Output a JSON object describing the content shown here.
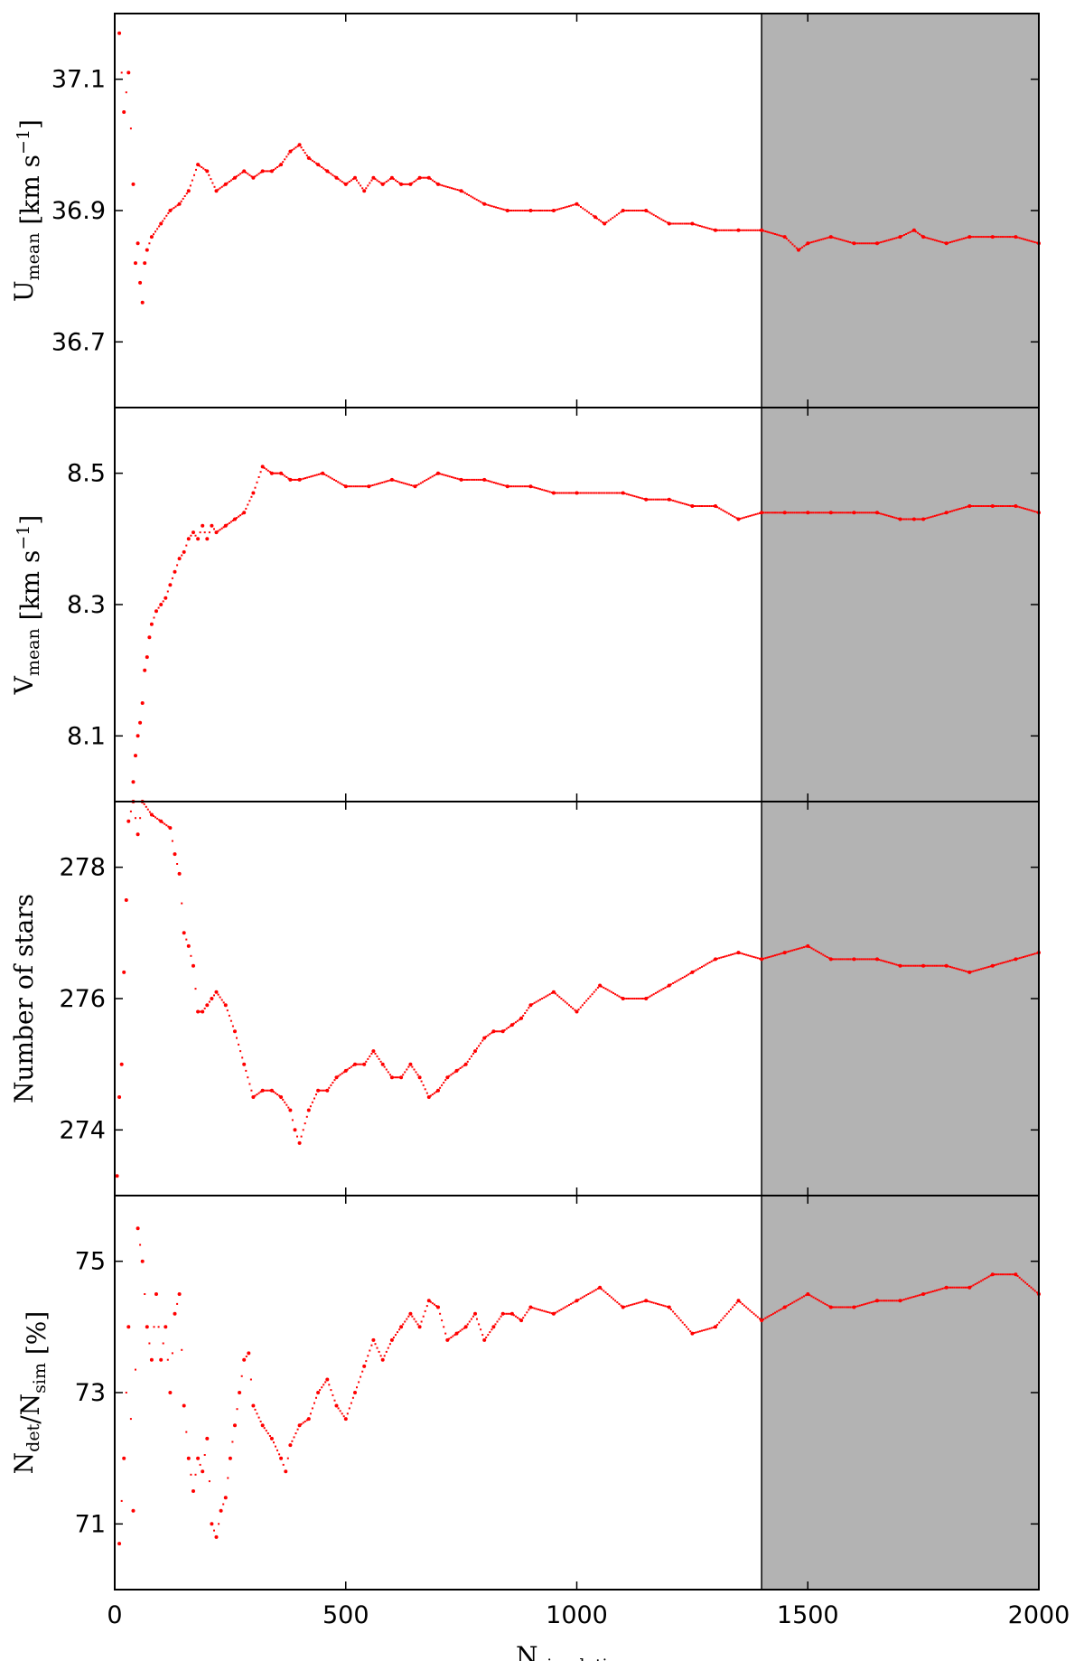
{
  "chart_data": {
    "type": "scatter",
    "shared_x": {
      "label_main": "N",
      "label_sub": "simulations",
      "xlim": [
        0,
        2000
      ],
      "ticks": [
        0,
        500,
        1000,
        1500,
        2000
      ],
      "tick_labels": [
        "0",
        "500",
        "1000",
        "1500",
        "2000"
      ]
    },
    "shaded_region": {
      "x_start": 1400,
      "x_end": 2000,
      "color": "#b3b3b3",
      "boundary_line_x": 1400
    },
    "marker_color": "#ff0000",
    "grid": false,
    "panels": [
      {
        "id": "u",
        "ylabel_main": "U",
        "ylabel_sub": "mean",
        "ylabel_unit": " [km s",
        "ylabel_unit_sup": "−1",
        "ylabel_unit_end": "]",
        "ylim": [
          36.6,
          37.2
        ],
        "yticks": [
          36.7,
          36.9,
          37.1
        ],
        "ytick_labels": [
          "36.7",
          "36.9",
          "37.1"
        ],
        "series": [
          {
            "x": [
              10,
              20,
              30,
              40,
              45,
              50,
              55,
              60,
              65,
              70,
              80,
              100,
              120,
              140,
              160,
              180,
              200,
              220,
              240,
              260,
              280,
              300,
              320,
              340,
              360,
              380,
              400,
              420,
              440,
              460,
              480,
              500,
              520,
              540,
              560,
              580,
              600,
              620,
              640,
              660,
              680,
              700,
              750,
              800,
              850,
              900,
              950,
              1000,
              1040,
              1060,
              1100,
              1150,
              1200,
              1250,
              1300,
              1350,
              1400,
              1450,
              1480,
              1500,
              1550,
              1600,
              1650,
              1700,
              1730,
              1750,
              1800,
              1850,
              1900,
              1950,
              2000
            ],
            "y": [
              37.17,
              37.05,
              37.11,
              36.94,
              36.82,
              36.85,
              36.79,
              36.76,
              36.82,
              36.84,
              36.86,
              36.88,
              36.9,
              36.91,
              36.93,
              36.97,
              36.96,
              36.93,
              36.94,
              36.95,
              36.96,
              36.95,
              36.96,
              36.96,
              36.97,
              36.99,
              37.0,
              36.98,
              36.97,
              36.96,
              36.95,
              36.94,
              36.95,
              36.93,
              36.95,
              36.94,
              36.95,
              36.94,
              36.94,
              36.95,
              36.95,
              36.94,
              36.93,
              36.91,
              36.9,
              36.9,
              36.9,
              36.91,
              36.89,
              36.88,
              36.9,
              36.9,
              36.88,
              36.88,
              36.87,
              36.87,
              36.87,
              36.86,
              36.84,
              36.85,
              36.86,
              36.85,
              36.85,
              36.86,
              36.87,
              36.86,
              36.85,
              36.86,
              36.86,
              36.86,
              36.85
            ]
          }
        ]
      },
      {
        "id": "v",
        "ylabel_main": "V",
        "ylabel_sub": "mean",
        "ylabel_unit": " [km s",
        "ylabel_unit_sup": "−1",
        "ylabel_unit_end": "]",
        "ylim": [
          8.0,
          8.6
        ],
        "yticks": [
          8.1,
          8.3,
          8.5
        ],
        "ytick_labels": [
          "8.1",
          "8.3",
          "8.5"
        ],
        "series": [
          {
            "x": [
              40,
              45,
              50,
              55,
              60,
              65,
              70,
              75,
              80,
              90,
              100,
              110,
              120,
              130,
              140,
              150,
              160,
              170,
              180,
              190,
              200,
              210,
              220,
              240,
              260,
              280,
              300,
              320,
              340,
              360,
              380,
              400,
              450,
              500,
              550,
              600,
              650,
              700,
              750,
              800,
              850,
              900,
              950,
              1000,
              1100,
              1150,
              1200,
              1250,
              1300,
              1350,
              1400,
              1450,
              1500,
              1550,
              1600,
              1650,
              1700,
              1730,
              1750,
              1800,
              1850,
              1900,
              1950,
              2000
            ],
            "y": [
              8.03,
              8.07,
              8.1,
              8.12,
              8.15,
              8.2,
              8.22,
              8.25,
              8.27,
              8.29,
              8.3,
              8.31,
              8.33,
              8.35,
              8.37,
              8.38,
              8.4,
              8.41,
              8.4,
              8.42,
              8.4,
              8.42,
              8.41,
              8.42,
              8.43,
              8.44,
              8.47,
              8.51,
              8.5,
              8.5,
              8.49,
              8.49,
              8.5,
              8.48,
              8.48,
              8.49,
              8.48,
              8.5,
              8.49,
              8.49,
              8.48,
              8.48,
              8.47,
              8.47,
              8.47,
              8.46,
              8.46,
              8.45,
              8.45,
              8.43,
              8.44,
              8.44,
              8.44,
              8.44,
              8.44,
              8.44,
              8.43,
              8.43,
              8.43,
              8.44,
              8.45,
              8.45,
              8.45,
              8.44
            ]
          }
        ]
      },
      {
        "id": "n",
        "ylabel_main": "Number of stars",
        "ylabel_sub": "",
        "ylabel_unit": "",
        "ylabel_unit_sup": "",
        "ylabel_unit_end": "",
        "ylim": [
          273.0,
          279.0
        ],
        "yticks": [
          274,
          276,
          278
        ],
        "ytick_labels": [
          "274",
          "276",
          "278"
        ],
        "series": [
          {
            "x": [
              5,
              10,
              15,
              20,
              25,
              30,
              40,
              50,
              60,
              80,
              100,
              120,
              130,
              140,
              150,
              160,
              170,
              180,
              190,
              200,
              210,
              220,
              240,
              260,
              280,
              300,
              320,
              340,
              360,
              380,
              390,
              400,
              420,
              440,
              460,
              480,
              500,
              520,
              540,
              560,
              580,
              600,
              620,
              640,
              660,
              680,
              700,
              720,
              740,
              760,
              780,
              800,
              820,
              840,
              860,
              880,
              900,
              950,
              1000,
              1050,
              1100,
              1150,
              1200,
              1250,
              1300,
              1350,
              1400,
              1450,
              1500,
              1550,
              1600,
              1650,
              1700,
              1750,
              1800,
              1850,
              1900,
              1950,
              2000
            ],
            "y": [
              273.3,
              274.5,
              275.0,
              276.4,
              277.5,
              278.7,
              279.0,
              278.5,
              279.0,
              278.8,
              278.7,
              278.6,
              278.2,
              277.9,
              277.0,
              276.8,
              276.5,
              275.8,
              275.8,
              275.9,
              276.0,
              276.1,
              275.9,
              275.5,
              275.0,
              274.5,
              274.6,
              274.6,
              274.5,
              274.3,
              274.0,
              273.8,
              274.3,
              274.6,
              274.6,
              274.8,
              274.9,
              275.0,
              275.0,
              275.2,
              275.0,
              274.8,
              274.8,
              275.0,
              274.8,
              274.5,
              274.6,
              274.8,
              274.9,
              275.0,
              275.2,
              275.4,
              275.5,
              275.5,
              275.6,
              275.7,
              275.9,
              276.1,
              275.8,
              276.2,
              276.0,
              276.0,
              276.2,
              276.4,
              276.6,
              276.7,
              276.6,
              276.7,
              276.8,
              276.6,
              276.6,
              276.6,
              276.5,
              276.5,
              276.5,
              276.4,
              276.5,
              276.6,
              276.7
            ]
          }
        ]
      },
      {
        "id": "det",
        "ylabel_main": "N",
        "ylabel_sub": "det",
        "ylabel_mid": "/N",
        "ylabel_sub2": "sim",
        "ylabel_unit": " [%]",
        "ylabel_unit_sup": "",
        "ylabel_unit_end": "",
        "ylim": [
          70.0,
          76.0
        ],
        "yticks": [
          71,
          73,
          75
        ],
        "ytick_labels": [
          "71",
          "73",
          "75"
        ],
        "series": [
          {
            "x": [
              10,
              20,
              30,
              40,
              50,
              60,
              70,
              80,
              90,
              100,
              110,
              120,
              130,
              140,
              150,
              160,
              170,
              180,
              190,
              200,
              210,
              220,
              230,
              240,
              250,
              260,
              270,
              280,
              290,
              300,
              320,
              340,
              360,
              370,
              380,
              400,
              420,
              440,
              460,
              480,
              500,
              520,
              540,
              560,
              580,
              600,
              620,
              640,
              660,
              680,
              700,
              720,
              740,
              760,
              780,
              800,
              820,
              840,
              860,
              880,
              900,
              950,
              1000,
              1050,
              1100,
              1150,
              1200,
              1250,
              1300,
              1350,
              1400,
              1450,
              1500,
              1550,
              1600,
              1650,
              1700,
              1750,
              1800,
              1850,
              1900,
              1950,
              2000
            ],
            "y": [
              70.7,
              72.0,
              74.0,
              71.2,
              75.5,
              75.0,
              74.0,
              73.5,
              74.5,
              73.5,
              74.0,
              73.0,
              74.2,
              74.5,
              72.8,
              72.0,
              71.5,
              72.0,
              71.8,
              72.3,
              71.0,
              70.8,
              71.2,
              71.4,
              72.0,
              72.5,
              73.0,
              73.5,
              73.6,
              72.8,
              72.5,
              72.3,
              72.0,
              71.8,
              72.2,
              72.5,
              72.6,
              73.0,
              73.2,
              72.8,
              72.6,
              73.0,
              73.4,
              73.8,
              73.5,
              73.8,
              74.0,
              74.2,
              74.0,
              74.4,
              74.3,
              73.8,
              73.9,
              74.0,
              74.2,
              73.8,
              74.0,
              74.2,
              74.2,
              74.1,
              74.3,
              74.2,
              74.4,
              74.6,
              74.3,
              74.4,
              74.3,
              73.9,
              74.0,
              74.4,
              74.1,
              74.3,
              74.5,
              74.3,
              74.3,
              74.4,
              74.4,
              74.5,
              74.6,
              74.6,
              74.8,
              74.8,
              74.5
            ]
          }
        ]
      }
    ]
  }
}
